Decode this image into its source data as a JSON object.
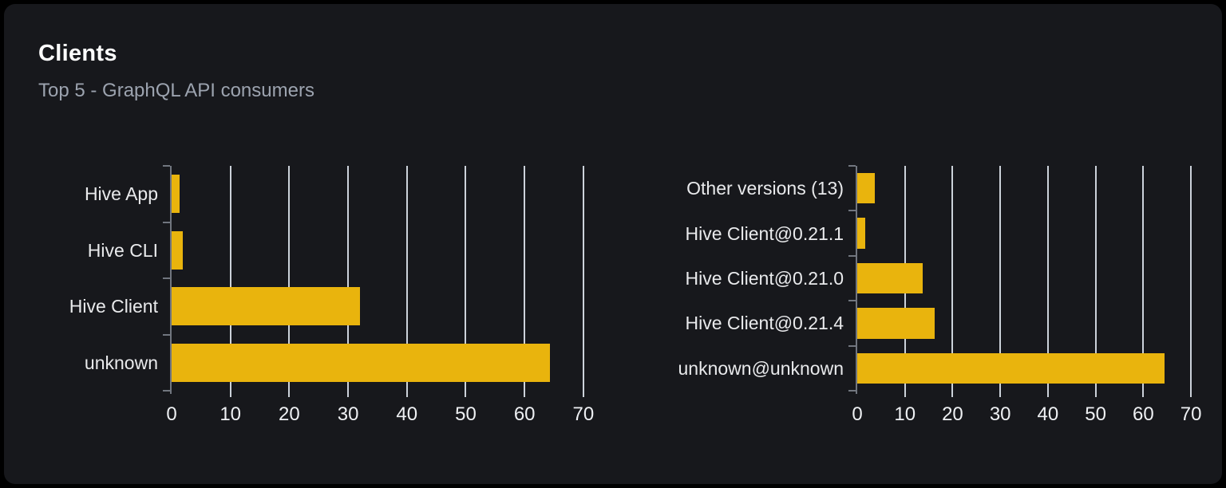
{
  "card": {
    "title": "Clients",
    "subtitle": "Top 5 - GraphQL API consumers"
  },
  "colors": {
    "page_bg": "#000000",
    "card_bg": "#17181c",
    "bar": "#e9b40d",
    "grid_line": "#ccd2da",
    "axis_line": "#71767f",
    "tick_label_text": "#eef0f3",
    "category_label_text": "#e9eaec",
    "title_text": "#ffffff",
    "subtitle_text": "#9ca3af"
  },
  "chart_data": [
    {
      "type": "bar",
      "orientation": "horizontal",
      "name": "clients-by-name",
      "title": "",
      "xlabel": "",
      "ylabel": "",
      "categories": [
        "Hive App",
        "Hive CLI",
        "Hive Client",
        "unknown"
      ],
      "values": [
        1.4,
        1.9,
        32,
        64.3
      ],
      "xticks": [
        0,
        10,
        20,
        30,
        40,
        50,
        60,
        70
      ],
      "xlim": [
        0,
        73
      ],
      "grid": true,
      "legend": "none"
    },
    {
      "type": "bar",
      "orientation": "horizontal",
      "name": "clients-by-version",
      "title": "",
      "xlabel": "",
      "ylabel": "",
      "categories": [
        "Other versions (13)",
        "Hive Client@0.21.1",
        "Hive Client@0.21.0",
        "Hive Client@0.21.4",
        "unknown@unknown"
      ],
      "values": [
        3.7,
        1.7,
        13.7,
        16.3,
        64.4
      ],
      "xticks": [
        0,
        10,
        20,
        30,
        40,
        50,
        60,
        70
      ],
      "xlim": [
        0,
        73
      ],
      "grid": true,
      "legend": "none"
    }
  ]
}
